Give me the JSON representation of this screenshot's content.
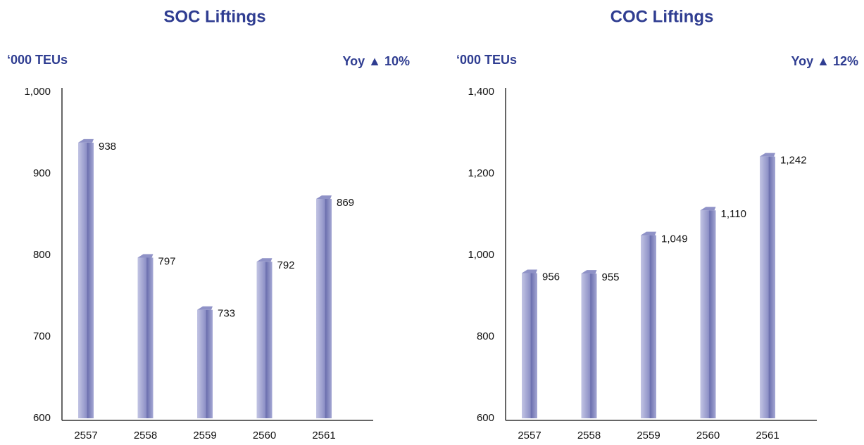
{
  "chart_data": [
    {
      "type": "bar",
      "title": "SOC Liftings",
      "y_label": "‘000 TEUs",
      "annotation": "Yoy ▲ 10%",
      "categories": [
        "2557",
        "2558",
        "2559",
        "2560",
        "2561"
      ],
      "values": [
        938,
        797,
        733,
        792,
        869
      ],
      "color": "#7b7fbb",
      "ylim": [
        600,
        1000
      ],
      "yticks": [
        600,
        700,
        800,
        900,
        {
          "value": 1000,
          "label": "1,000"
        }
      ]
    },
    {
      "type": "bar",
      "title": "COC Liftings",
      "y_label": "‘000 TEUs",
      "annotation": "Yoy ▲ 12%",
      "categories": [
        "2557",
        "2558",
        "2559",
        "2560",
        "2561"
      ],
      "values": [
        956,
        955,
        1049,
        1110,
        1242
      ],
      "value_labels": [
        "956",
        "955",
        "1,049",
        "1,110",
        "1,242"
      ],
      "color": "#7b7fbb",
      "ylim": [
        600,
        1400
      ],
      "yticks": [
        600,
        800,
        {
          "value": 1000,
          "label": "1,000"
        },
        {
          "value": 1200,
          "label": "1,200"
        },
        {
          "value": 1400,
          "label": "1,400"
        }
      ]
    }
  ]
}
